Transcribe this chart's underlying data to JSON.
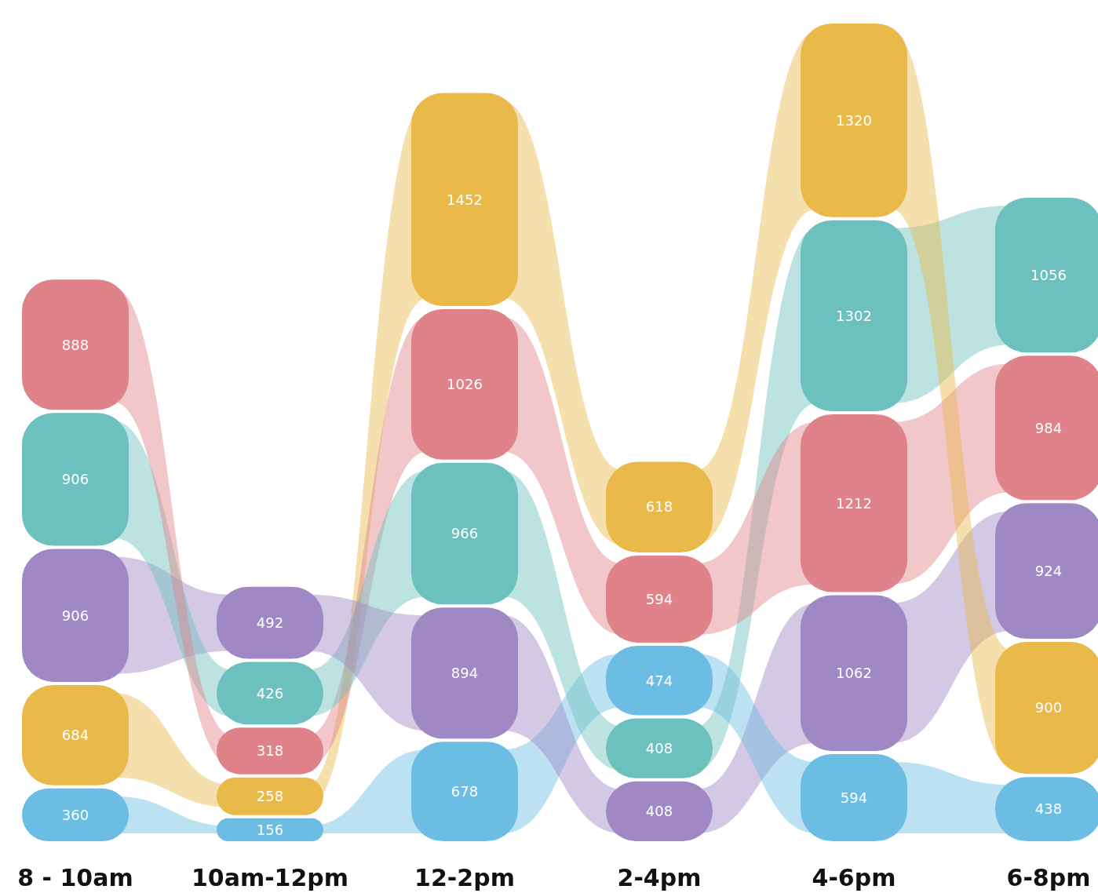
{
  "chart_data": {
    "type": "other",
    "categories": [
      "8 - 10am",
      "10am-12pm",
      "12-2pm",
      "2-4pm",
      "4-6pm",
      "6-8pm"
    ],
    "data_labels": true,
    "series": [
      {
        "values": [
          360,
          156,
          678,
          408,
          594,
          438
        ],
        "colors": [
          "#6bbde3",
          "#6bbde3",
          "#6bbde3",
          "#a088c4",
          "#6bbde3",
          "#6bbde3"
        ]
      },
      {
        "values": [
          684,
          258,
          894,
          408,
          1062,
          900
        ],
        "colors": [
          "#e9b94a",
          "#e9b94a",
          "#a088c4",
          "#6cc0bd",
          "#a088c4",
          "#e9b94a"
        ]
      },
      {
        "values": [
          906,
          318,
          966,
          474,
          1212,
          924
        ],
        "colors": [
          "#a088c4",
          "#e0828a",
          "#6cc0bd",
          "#6bbde3",
          "#e0828a",
          "#a088c4"
        ]
      },
      {
        "values": [
          906,
          426,
          1026,
          594,
          1302,
          984
        ],
        "colors": [
          "#6cc0bd",
          "#6cc0bd",
          "#e0828a",
          "#e0828a",
          "#6cc0bd",
          "#e0828a"
        ]
      },
      {
        "values": [
          888,
          492,
          1452,
          618,
          1320,
          1056
        ],
        "colors": [
          "#e0828a",
          "#a088c4",
          "#e9b94a",
          "#e9b94a",
          "#e9b94a",
          "#6cc0bd"
        ]
      }
    ]
  }
}
